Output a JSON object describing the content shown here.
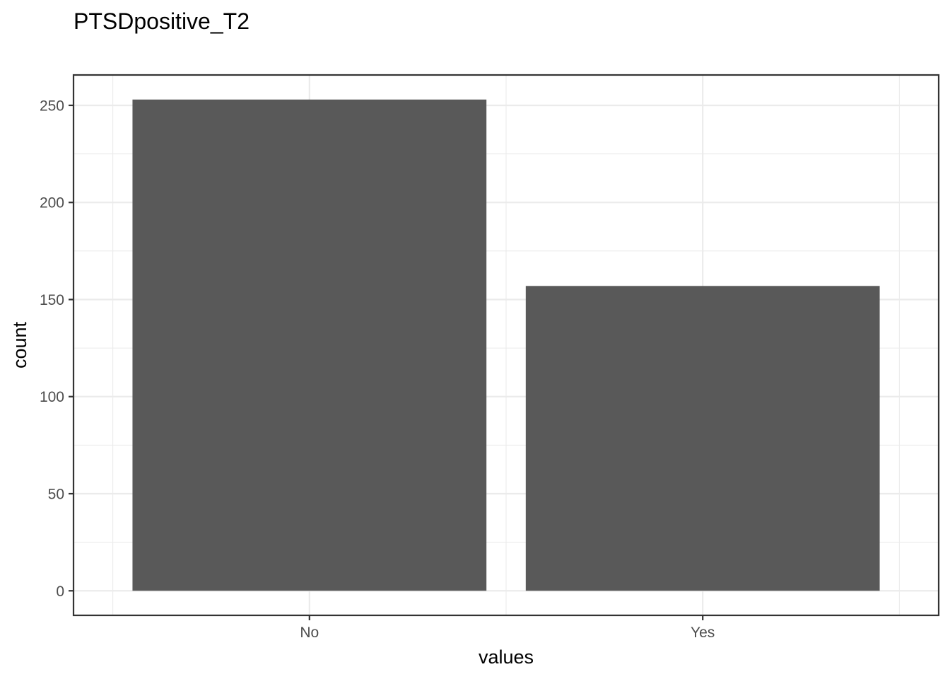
{
  "chart_data": {
    "type": "bar",
    "title": "PTSDpositive_T2",
    "xlabel": "values",
    "ylabel": "count",
    "categories": [
      "No",
      "Yes"
    ],
    "values": [
      253,
      157
    ],
    "ylim": [
      -12.65,
      265.65
    ],
    "yticks": [
      0,
      50,
      100,
      150,
      200,
      250
    ],
    "ytick_labels": [
      "0",
      "50",
      "100",
      "150",
      "200",
      "250"
    ],
    "bar_color": "#595959",
    "grid": true,
    "legend": "none"
  }
}
